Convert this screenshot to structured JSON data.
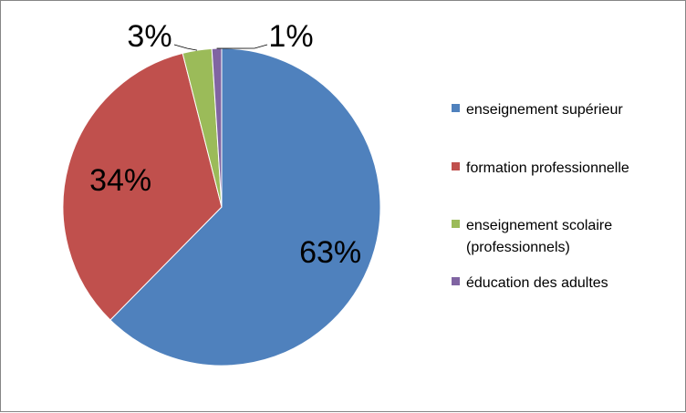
{
  "chart_data": {
    "type": "pie",
    "categories": [
      "enseignement supérieur",
      "formation professionnelle",
      "enseignement scolaire (professionnels)",
      "éducation des adultes"
    ],
    "values": [
      63,
      34,
      3,
      1
    ],
    "data_labels": [
      "63%",
      "34%",
      "3%",
      "1%"
    ],
    "legend": {
      "placement": "right",
      "entries": [
        {
          "lines": [
            "enseignement supérieur"
          ]
        },
        {
          "lines": [
            "formation professionnelle"
          ]
        },
        {
          "lines": [
            "enseignement scolaire",
            "(professionnels)"
          ]
        },
        {
          "lines": [
            "éducation des adultes"
          ]
        }
      ]
    },
    "colors": [
      "#4F81BD",
      "#C0504D",
      "#9BBB59",
      "#8064A2"
    ]
  }
}
